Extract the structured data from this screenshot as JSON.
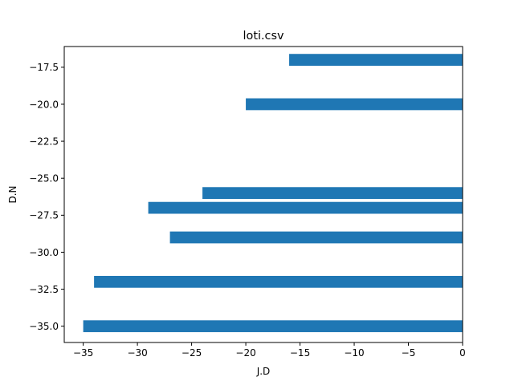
{
  "chart_data": {
    "type": "bar",
    "orientation": "horizontal",
    "title": "loti.csv",
    "xlabel": "J.D",
    "ylabel": "D.N",
    "xlim": [
      -36.75,
      0
    ],
    "ylim": [
      -36.1,
      -16.1
    ],
    "xticks": [
      -35,
      -30,
      -25,
      -20,
      -15,
      -10,
      -5,
      0
    ],
    "xtick_labels": [
      "−35",
      "−30",
      "−25",
      "−20",
      "−15",
      "−10",
      "−5",
      "0"
    ],
    "yticks": [
      -17.5,
      -20.0,
      -22.5,
      -25.0,
      -27.5,
      -30.0,
      -32.5,
      -35.0
    ],
    "ytick_labels": [
      "−17.5",
      "−20.0",
      "−22.5",
      "−25.0",
      "−27.5",
      "−30.0",
      "−32.5",
      "−35.0"
    ],
    "bar_height": 0.8,
    "grid": false,
    "legend": "none",
    "color": "#1f77b4",
    "points": [
      {
        "y": -17,
        "x": -16
      },
      {
        "y": -20,
        "x": -20
      },
      {
        "y": -26,
        "x": -24
      },
      {
        "y": -27,
        "x": -29
      },
      {
        "y": -29,
        "x": -27
      },
      {
        "y": -32,
        "x": -34
      },
      {
        "y": -35,
        "x": -35
      }
    ]
  }
}
